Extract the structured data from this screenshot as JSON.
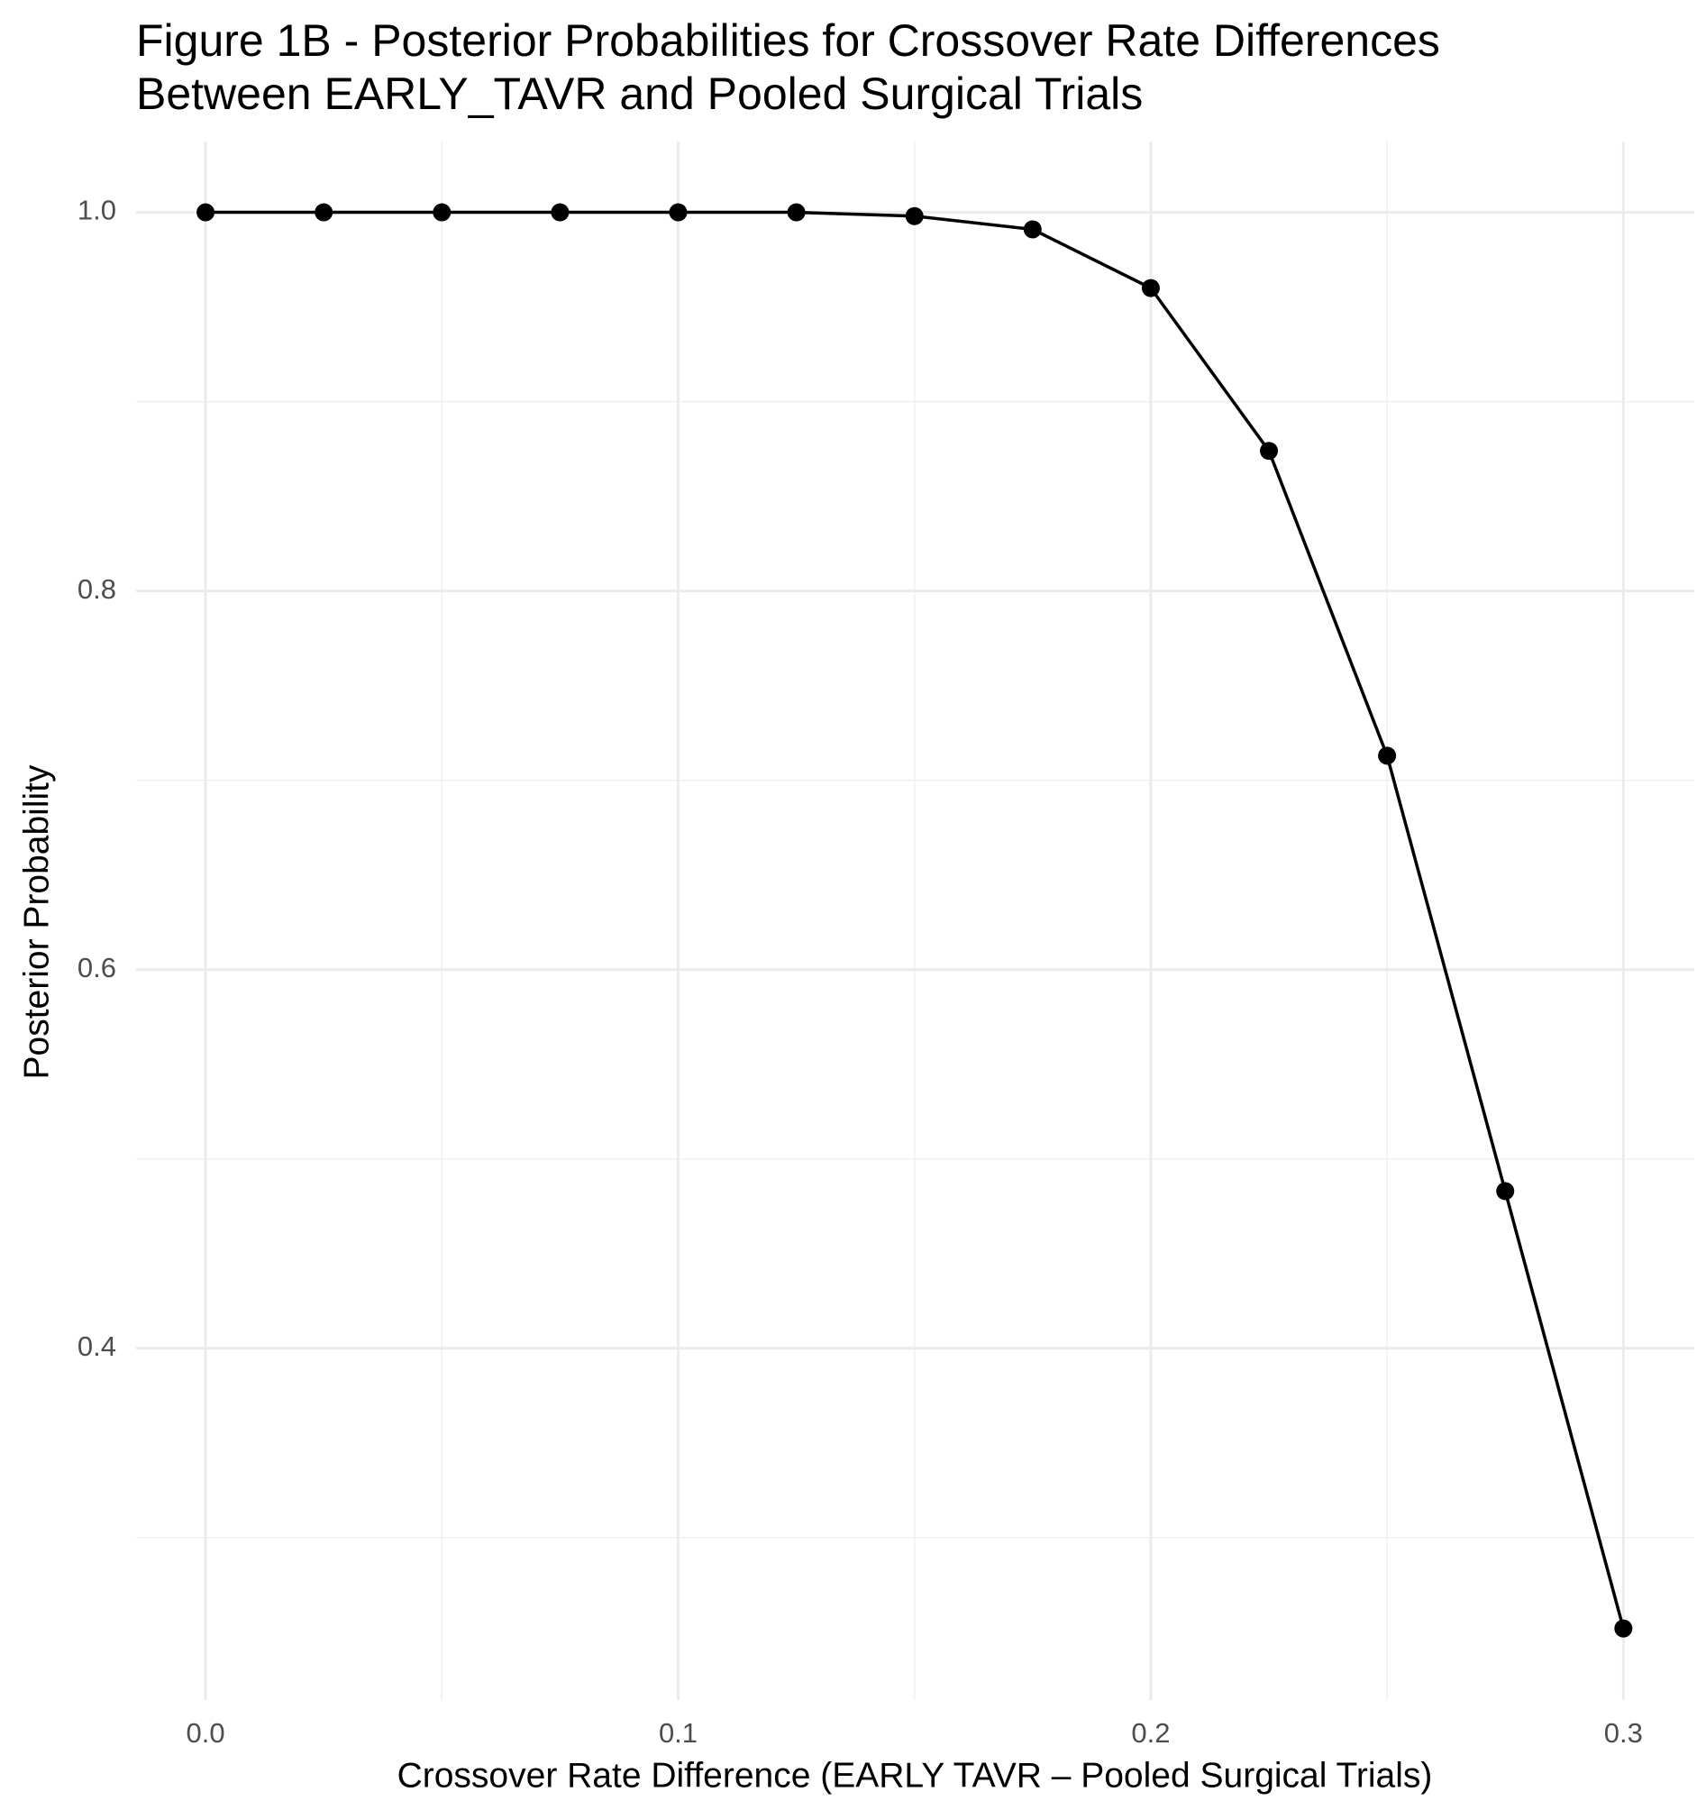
{
  "chart_data": {
    "type": "line",
    "title": [
      "Figure 1B - Posterior Probabilities for Crossover Rate Differences",
      "Between EARLY_TAVR and Pooled Surgical Trials"
    ],
    "x_label": "Crossover Rate Difference (EARLY TAVR – Pooled Surgical Trials)",
    "y_label": "Posterior Probability",
    "x": [
      0,
      0.025,
      0.05,
      0.075,
      0.1,
      0.125,
      0.15,
      0.175,
      0.2,
      0.225,
      0.25,
      0.275,
      0.3
    ],
    "series": [
      {
        "color": "#000000",
        "values": [
          1,
          1,
          1,
          1,
          1,
          1,
          0.998,
          0.991,
          0.96,
          0.874,
          0.713,
          0.483,
          0.252
        ]
      }
    ],
    "xlim": [
      -0.0147,
      0.315
    ],
    "ylim": [
      0.2142,
      1.0374
    ],
    "xticks": [
      {
        "value": 0,
        "label": "0.0"
      },
      0.1,
      0.2,
      0.3
    ],
    "yticks": [
      0.4,
      0.6,
      0.8,
      {
        "value": 1,
        "label": "1.0"
      }
    ],
    "grid": true
  }
}
